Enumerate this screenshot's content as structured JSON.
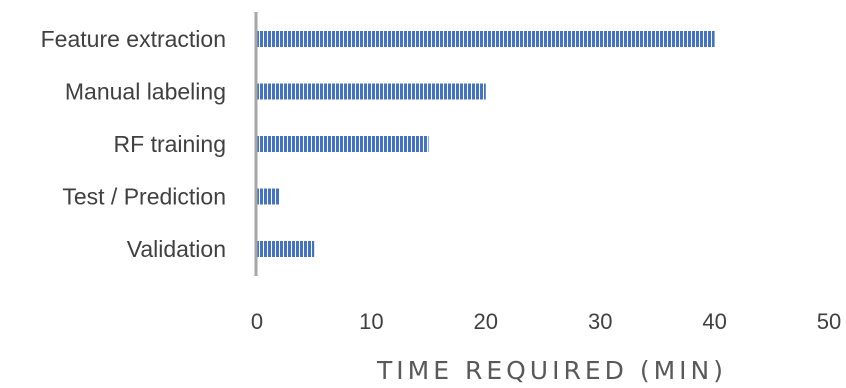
{
  "chart_data": {
    "type": "bar",
    "orientation": "horizontal",
    "title": "",
    "xlabel": "TIME REQUIRED (MIN)",
    "ylabel": "",
    "categories": [
      "Feature extraction",
      "Manual labeling",
      "RF training",
      "Test / Prediction",
      "Validation"
    ],
    "values": [
      40,
      20,
      15,
      2,
      5
    ],
    "xlim": [
      0,
      50
    ],
    "xticks": [
      "0",
      "10",
      "20",
      "30",
      "40",
      "50"
    ],
    "grid": false,
    "legend": "none",
    "bar_color": "#4472C4",
    "bar_pattern": "vertical-stripes",
    "axis_color": "#A6A6A6"
  }
}
